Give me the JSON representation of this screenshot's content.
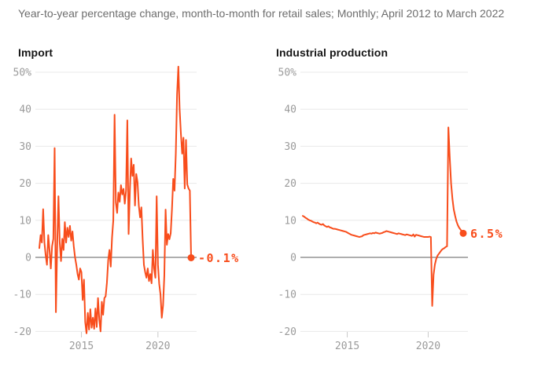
{
  "header": {
    "title": "Year-to-year percentage change, month-to-month for retail sales; Monthly; April 2012 to March 2022"
  },
  "colors": {
    "line": "#f84d1c",
    "grid": "#e8e8e8",
    "zero_line": "#a3a3a3",
    "tick_mark": "#c9c9c9",
    "axis_text": "#9b9b9b",
    "title_text": "#6d6d6d",
    "chart_title_text": "#161616",
    "background": "#ffffff"
  },
  "chart_data": [
    {
      "type": "line",
      "title": "Import",
      "frequency": "monthly",
      "x_start": "2012-04",
      "x_end": "2022-03",
      "ylim": [
        -22,
        53
      ],
      "grid": true,
      "y_ticks": [
        {
          "v": 50,
          "label": "50%"
        },
        {
          "v": 40,
          "label": "40"
        },
        {
          "v": 30,
          "label": "30"
        },
        {
          "v": 20,
          "label": "20"
        },
        {
          "v": 10,
          "label": "10"
        },
        {
          "v": 0,
          "label": "0"
        },
        {
          "v": -10,
          "label": "-10"
        },
        {
          "v": -20,
          "label": "-20"
        }
      ],
      "x_ticks": [
        {
          "label": "2015",
          "month_index": 33
        },
        {
          "label": "2020",
          "month_index": 93
        }
      ],
      "end_label": "-0.1%",
      "last_value": -0.1,
      "values": [
        2.5,
        6,
        4,
        13,
        4,
        0.5,
        -2,
        6,
        2,
        -3,
        3,
        5,
        29.5,
        -14.8,
        3,
        16.5,
        4,
        -1,
        5,
        2,
        9.5,
        4,
        8,
        5.5,
        8.5,
        4.5,
        7,
        3,
        0,
        -2,
        -4.5,
        -6,
        -3,
        -4,
        -11.5,
        -6,
        -17.5,
        -20.5,
        -15,
        -19.5,
        -14,
        -19,
        -16.3,
        -19.3,
        -13.8,
        -18.8,
        -11,
        -16.7,
        -20,
        -12,
        -15.5,
        -11,
        -10.5,
        -6.8,
        -0.8,
        2,
        -2.5,
        5.3,
        10,
        38.5,
        14.8,
        12,
        17.5,
        15,
        19.5,
        17,
        18.5,
        14.5,
        18,
        37,
        6.3,
        18,
        26.7,
        22,
        25,
        14,
        22.5,
        20.3,
        14,
        10.8,
        13.5,
        5,
        -2,
        -4,
        -5.5,
        -3,
        -6.4,
        -4.5,
        -7,
        2,
        -3,
        -5.5,
        16.5,
        -2,
        -7.2,
        -10,
        -16.3,
        -13,
        -5,
        12.9,
        3.4,
        6.3,
        4.9,
        6.5,
        13,
        21.2,
        18,
        28,
        44,
        51.5,
        40,
        33.4,
        28,
        32.3,
        18.6,
        31.7,
        19.7,
        18.6,
        18,
        -0.1
      ]
    },
    {
      "type": "line",
      "title": "Industrial production",
      "frequency": "monthly",
      "x_start": "2012-04",
      "x_end": "2022-03",
      "ylim": [
        -22,
        53
      ],
      "grid": true,
      "y_ticks": [
        {
          "v": 50,
          "label": "50%"
        },
        {
          "v": 40,
          "label": "40"
        },
        {
          "v": 30,
          "label": "30"
        },
        {
          "v": 20,
          "label": "20"
        },
        {
          "v": 10,
          "label": "10"
        },
        {
          "v": 0,
          "label": "0"
        },
        {
          "v": -10,
          "label": "-10"
        },
        {
          "v": -20,
          "label": "-20"
        }
      ],
      "x_ticks": [
        {
          "label": "2015",
          "month_index": 33
        },
        {
          "label": "2020",
          "month_index": 93
        }
      ],
      "end_label": "6.5%",
      "last_value": 6.5,
      "values": [
        11.2,
        11.0,
        10.7,
        10.5,
        10.2,
        10.0,
        9.9,
        9.7,
        9.5,
        9.4,
        9.2,
        9.4,
        9.1,
        8.9,
        8.8,
        9.0,
        8.6,
        8.4,
        8.2,
        8.4,
        8.1,
        8.0,
        7.8,
        7.7,
        7.7,
        7.6,
        7.5,
        7.4,
        7.3,
        7.2,
        7.1,
        7.0,
        6.9,
        6.7,
        6.5,
        6.3,
        6.1,
        6.0,
        5.9,
        5.8,
        5.7,
        5.6,
        5.5,
        5.6,
        5.7,
        6.0,
        6.1,
        6.2,
        6.3,
        6.4,
        6.5,
        6.4,
        6.6,
        6.5,
        6.7,
        6.6,
        6.5,
        6.4,
        6.5,
        6.6,
        6.8,
        6.9,
        7.1,
        7.0,
        6.9,
        6.8,
        6.7,
        6.6,
        6.5,
        6.4,
        6.3,
        6.5,
        6.4,
        6.3,
        6.2,
        6.1,
        6.0,
        6.2,
        6.1,
        6.0,
        5.9,
        5.8,
        6.2,
        5.6,
        6.1,
        6.0,
        5.9,
        5.8,
        5.7,
        5.6,
        5.5,
        5.5,
        5.5,
        5.5,
        5.6,
        5.5,
        -13.1,
        -4.7,
        -1.9,
        -0.4,
        0.5,
        1.0,
        1.5,
        2.0,
        2.3,
        2.5,
        2.8,
        3.0,
        35.1,
        27.0,
        20.0,
        15.8,
        12.9,
        11.2,
        9.7,
        8.7,
        8.0,
        7.5,
        7.0,
        6.5
      ]
    }
  ]
}
